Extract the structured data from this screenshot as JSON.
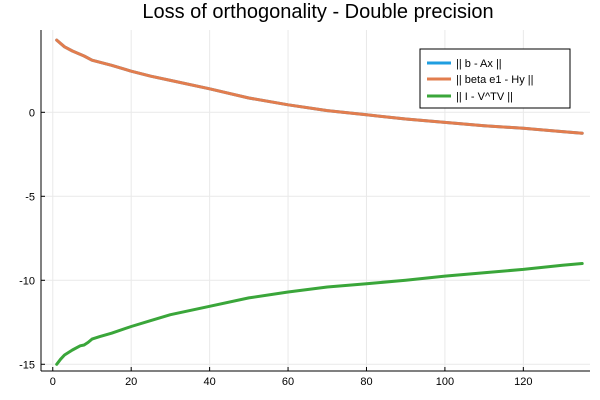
{
  "chart_data": {
    "type": "line",
    "title": "Loss of orthogonality - Double precision",
    "xlabel": "",
    "ylabel": "",
    "xlim": [
      -3,
      137
    ],
    "ylim": [
      -15.4,
      4.9
    ],
    "xticks": [
      0,
      20,
      40,
      60,
      80,
      100,
      120
    ],
    "yticks": [
      0,
      -5,
      -10,
      -15
    ],
    "ytick_labels": [
      "0",
      "-5",
      "-10",
      "-15"
    ],
    "grid": true,
    "legend_position": "top-right",
    "series": [
      {
        "name": "|| b - Ax ||",
        "color": "#1f9ee0",
        "points": [
          [
            1,
            4.3
          ],
          [
            3,
            3.9
          ],
          [
            5,
            3.65
          ],
          [
            8,
            3.35
          ],
          [
            10,
            3.1
          ],
          [
            15,
            2.8
          ],
          [
            20,
            2.45
          ],
          [
            25,
            2.15
          ],
          [
            30,
            1.9
          ],
          [
            40,
            1.4
          ],
          [
            50,
            0.85
          ],
          [
            60,
            0.45
          ],
          [
            70,
            0.1
          ],
          [
            80,
            -0.15
          ],
          [
            90,
            -0.4
          ],
          [
            100,
            -0.6
          ],
          [
            110,
            -0.8
          ],
          [
            120,
            -0.95
          ],
          [
            130,
            -1.15
          ],
          [
            135,
            -1.25
          ]
        ]
      },
      {
        "name": "|| beta e1 - Hy ||",
        "color": "#e27d4e",
        "points": [
          [
            1,
            4.3
          ],
          [
            3,
            3.9
          ],
          [
            5,
            3.65
          ],
          [
            8,
            3.35
          ],
          [
            10,
            3.1
          ],
          [
            15,
            2.8
          ],
          [
            20,
            2.45
          ],
          [
            25,
            2.15
          ],
          [
            30,
            1.9
          ],
          [
            40,
            1.4
          ],
          [
            50,
            0.85
          ],
          [
            60,
            0.45
          ],
          [
            70,
            0.1
          ],
          [
            80,
            -0.15
          ],
          [
            90,
            -0.4
          ],
          [
            100,
            -0.6
          ],
          [
            110,
            -0.8
          ],
          [
            120,
            -0.95
          ],
          [
            130,
            -1.15
          ],
          [
            135,
            -1.25
          ]
        ]
      },
      {
        "name": "|| I - V^TV ||",
        "color": "#3aa63a",
        "points": [
          [
            1,
            -15.0
          ],
          [
            2,
            -14.7
          ],
          [
            3,
            -14.45
          ],
          [
            5,
            -14.15
          ],
          [
            7,
            -13.9
          ],
          [
            8,
            -13.85
          ],
          [
            9,
            -13.7
          ],
          [
            10,
            -13.5
          ],
          [
            12,
            -13.35
          ],
          [
            15,
            -13.15
          ],
          [
            20,
            -12.75
          ],
          [
            25,
            -12.4
          ],
          [
            30,
            -12.05
          ],
          [
            40,
            -11.55
          ],
          [
            50,
            -11.05
          ],
          [
            60,
            -10.7
          ],
          [
            70,
            -10.4
          ],
          [
            80,
            -10.2
          ],
          [
            90,
            -10.0
          ],
          [
            100,
            -9.75
          ],
          [
            110,
            -9.55
          ],
          [
            120,
            -9.35
          ],
          [
            130,
            -9.1
          ],
          [
            135,
            -9.0
          ]
        ]
      }
    ]
  }
}
